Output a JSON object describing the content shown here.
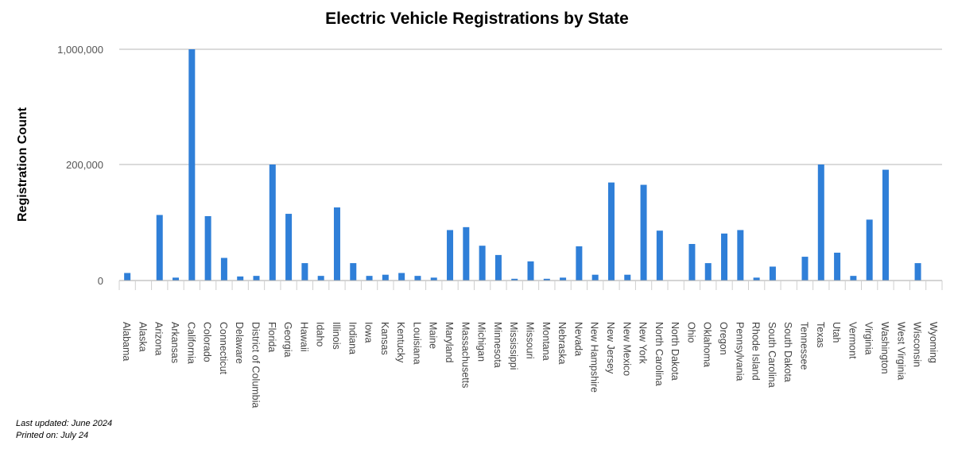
{
  "chart_data": {
    "type": "bar",
    "title": "Electric Vehicle Registrations by State",
    "ylabel": "Registration Count",
    "xlabel": "",
    "y_ticks": [
      {
        "value": 0,
        "label": "0"
      },
      {
        "value": 200000,
        "label": "200,000"
      },
      {
        "value": 1000000,
        "label": "1,000,000"
      }
    ],
    "y_scale_note": "non-linear axis: equal spacing between 0, 200,000 and 1,000,000",
    "grid": true,
    "legend": "none",
    "bar_color": "#2f7fd8",
    "categories": [
      "Alabama",
      "Alaska",
      "Arizona",
      "Arkansas",
      "California",
      "Colorado",
      "Connecticut",
      "Delaware",
      "District of Columbia",
      "Florida",
      "Georgia",
      "Hawaii",
      "Idaho",
      "Illinois",
      "Indiana",
      "Iowa",
      "Kansas",
      "Kentucky",
      "Louisiana",
      "Maine",
      "Maryland",
      "Massachusetts",
      "Michigan",
      "Minnesota",
      "Mississippi",
      "Missouri",
      "Montana",
      "Nebraska",
      "Nevada",
      "New Hampshire",
      "New Jersey",
      "New Mexico",
      "New York",
      "North Carolina",
      "North Dakota",
      "Ohio",
      "Oklahoma",
      "Oregon",
      "Pennsylvania",
      "Rhode Island",
      "South Carolina",
      "South Dakota",
      "Tennessee",
      "Texas",
      "Utah",
      "Vermont",
      "Virginia",
      "Washington",
      "West Virginia",
      "Wisconsin",
      "Wyoming"
    ],
    "values": [
      13000,
      500,
      113000,
      5000,
      1000000,
      111000,
      39000,
      7000,
      8000,
      200000,
      115000,
      30000,
      8000,
      126000,
      30000,
      8000,
      10000,
      13000,
      8000,
      5000,
      87000,
      92000,
      60000,
      44000,
      3000,
      33000,
      3000,
      5000,
      59000,
      10000,
      169000,
      10000,
      165000,
      86000,
      500,
      63000,
      30000,
      81000,
      87000,
      5000,
      24000,
      500,
      41000,
      200000,
      48000,
      8000,
      105000,
      191000,
      500,
      30000,
      500
    ]
  },
  "footnotes": {
    "updated": "Last updated: June 2024",
    "printed": "Printed on: July 24"
  }
}
